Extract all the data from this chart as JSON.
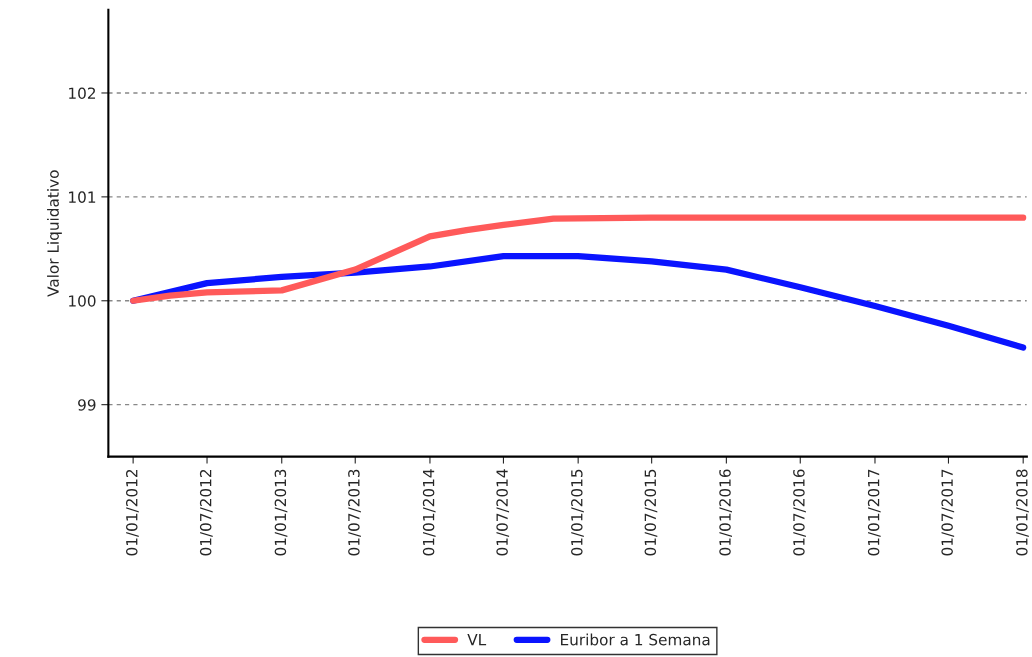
{
  "chart_data": {
    "type": "line",
    "ylabel": "Valor Liquidativo",
    "xlim": [
      "2011-11-01",
      "2018-01-10"
    ],
    "ylim": [
      98.5,
      102.8
    ],
    "yticks": [
      99,
      100,
      101,
      102
    ],
    "xticks": [
      {
        "value": "2012-01-01",
        "label": "01/01/2012"
      },
      {
        "value": "2012-07-01",
        "label": "01/07/2012"
      },
      {
        "value": "2013-01-01",
        "label": "01/01/2013"
      },
      {
        "value": "2013-07-01",
        "label": "01/07/2013"
      },
      {
        "value": "2014-01-01",
        "label": "01/01/2014"
      },
      {
        "value": "2014-07-01",
        "label": "01/07/2014"
      },
      {
        "value": "2015-01-01",
        "label": "01/01/2015"
      },
      {
        "value": "2015-07-01",
        "label": "01/07/2015"
      },
      {
        "value": "2016-01-01",
        "label": "01/01/2016"
      },
      {
        "value": "2016-07-01",
        "label": "01/07/2016"
      },
      {
        "value": "2017-01-01",
        "label": "01/01/2017"
      },
      {
        "value": "2017-07-01",
        "label": "01/07/2017"
      },
      {
        "value": "2018-01-01",
        "label": "01/01/2018"
      }
    ],
    "grid": "y",
    "legend": "bottom",
    "marker": "none",
    "line_style": "solid",
    "series": [
      {
        "name": "VL",
        "color": "#ff5a5a",
        "x": [
          "2012-01-01",
          "2012-04-01",
          "2012-07-01",
          "2013-01-01",
          "2013-07-01",
          "2014-01-01",
          "2014-04-01",
          "2014-07-01",
          "2014-11-01",
          "2015-07-01",
          "2016-07-01",
          "2017-07-01",
          "2018-01-01"
        ],
        "values": [
          100.0,
          100.05,
          100.08,
          100.1,
          100.3,
          100.62,
          100.68,
          100.73,
          100.79,
          100.8,
          100.8,
          100.8,
          100.8
        ]
      },
      {
        "name": "Euribor a 1 Semana",
        "color": "#0a14ff",
        "x": [
          "2012-01-01",
          "2012-07-01",
          "2013-01-01",
          "2013-07-01",
          "2014-01-01",
          "2014-07-01",
          "2015-01-01",
          "2015-07-01",
          "2016-01-01",
          "2016-07-01",
          "2017-01-01",
          "2017-07-01",
          "2018-01-01"
        ],
        "values": [
          100.0,
          100.17,
          100.23,
          100.27,
          100.33,
          100.43,
          100.43,
          100.38,
          100.3,
          100.13,
          99.95,
          99.76,
          99.55
        ]
      }
    ]
  }
}
